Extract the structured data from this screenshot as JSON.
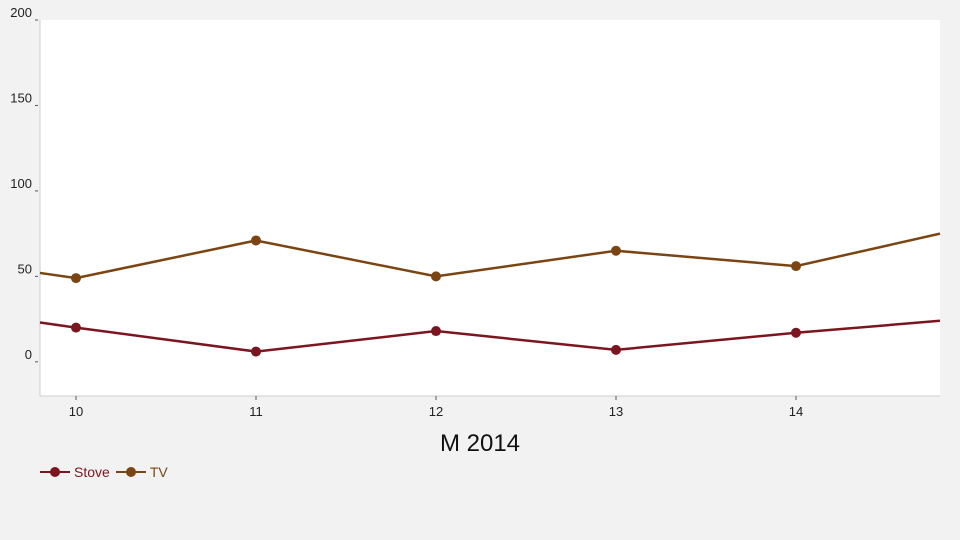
{
  "chart_data": {
    "type": "line",
    "title": "",
    "xlabel": "M 2014",
    "ylabel": "",
    "x": [
      "10",
      "11",
      "12",
      "13",
      "14"
    ],
    "x_range": [
      9.8,
      14.8
    ],
    "ylim": [
      -20,
      200
    ],
    "y_ticks": [
      0,
      50,
      100,
      150,
      200
    ],
    "grid": false,
    "legend_position": "bottom-left",
    "series": [
      {
        "name": "Stove",
        "color": "#7b1620",
        "points": [
          [
            9.8,
            23
          ],
          [
            10,
            20
          ],
          [
            11,
            6
          ],
          [
            12,
            18
          ],
          [
            13,
            7
          ],
          [
            14,
            17
          ],
          [
            14.8,
            24
          ]
        ]
      },
      {
        "name": "TV",
        "color": "#7a4512",
        "points": [
          [
            9.8,
            52
          ],
          [
            10,
            49
          ],
          [
            11,
            71
          ],
          [
            12,
            50
          ],
          [
            13,
            65
          ],
          [
            14,
            56
          ],
          [
            14.8,
            75
          ]
        ]
      }
    ]
  }
}
